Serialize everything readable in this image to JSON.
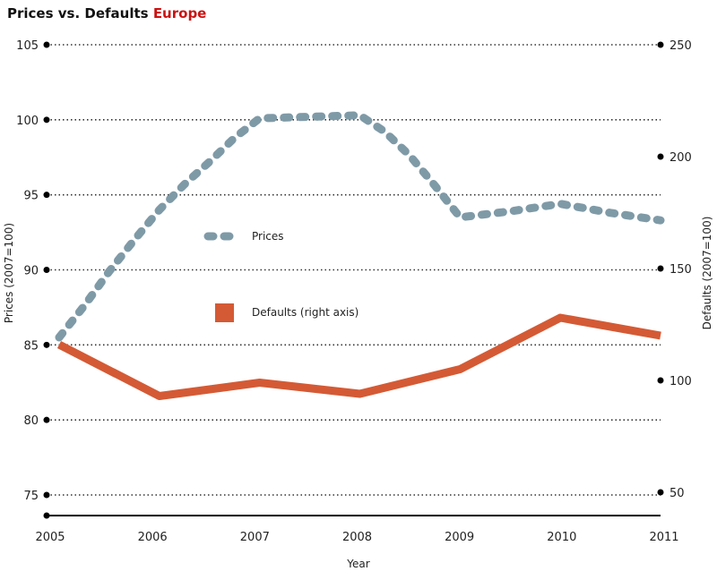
{
  "title": {
    "main": "Prices vs. Defaults",
    "region": "Europe"
  },
  "colors": {
    "prices": "#7f9aa7",
    "defaults": "#d45a35",
    "region": "#cc1111"
  },
  "chart_data": {
    "type": "line",
    "x": [
      2005,
      2006,
      2007,
      2008,
      2009,
      2010,
      2011
    ],
    "xlabel": "Year",
    "ylabel": "Prices (2007=100)",
    "ylabel_right": "Defaults (2007=100)",
    "ylim": [
      75,
      105
    ],
    "ylim_right": [
      50,
      250
    ],
    "yticks": [
      75,
      80,
      85,
      90,
      95,
      100,
      105
    ],
    "yticks_right": [
      50,
      100,
      150,
      200,
      250
    ],
    "grid": true,
    "series": [
      {
        "name": "Prices",
        "axis": "left",
        "style": "dashed",
        "x": [
          2005,
          2005.25,
          2005.5,
          2005.75,
          2006,
          2006.25,
          2006.5,
          2006.75,
          2007,
          2007.5,
          2008,
          2008.25,
          2008.5,
          2008.75,
          2009,
          2009.5,
          2010,
          2010.5,
          2011
        ],
        "values": [
          85.5,
          87.6,
          89.9,
          92.0,
          94.0,
          95.7,
          97.2,
          98.8,
          100.1,
          100.2,
          100.3,
          99.2,
          97.6,
          95.6,
          93.5,
          93.9,
          94.4,
          93.8,
          93.3
        ]
      },
      {
        "name": "Defaults (right axis)",
        "axis": "right",
        "style": "solid",
        "x": [
          2005,
          2006,
          2007,
          2008,
          2009,
          2010,
          2011
        ],
        "values": [
          116,
          93,
          99,
          94,
          105,
          128,
          120
        ]
      }
    ]
  }
}
